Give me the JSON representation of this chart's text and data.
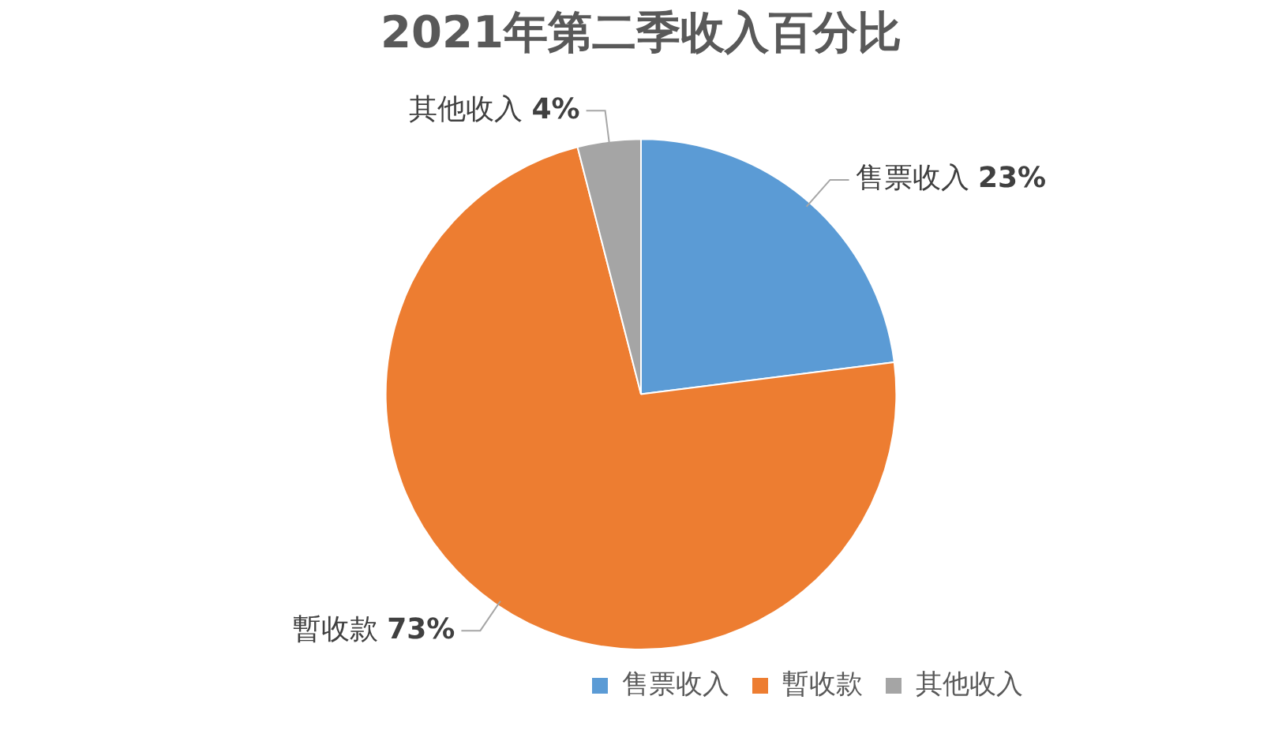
{
  "chart_data": {
    "type": "pie",
    "title": "2021年第二季收入百分比",
    "categories": [
      "售票收入",
      "暫收款",
      "其他收入"
    ],
    "values": [
      23,
      73,
      4
    ],
    "colors": [
      "#5b9bd5",
      "#ed7d31",
      "#a5a5a5"
    ],
    "value_labels": [
      "23%",
      "73%",
      "4%"
    ],
    "legend": "bottom right"
  }
}
